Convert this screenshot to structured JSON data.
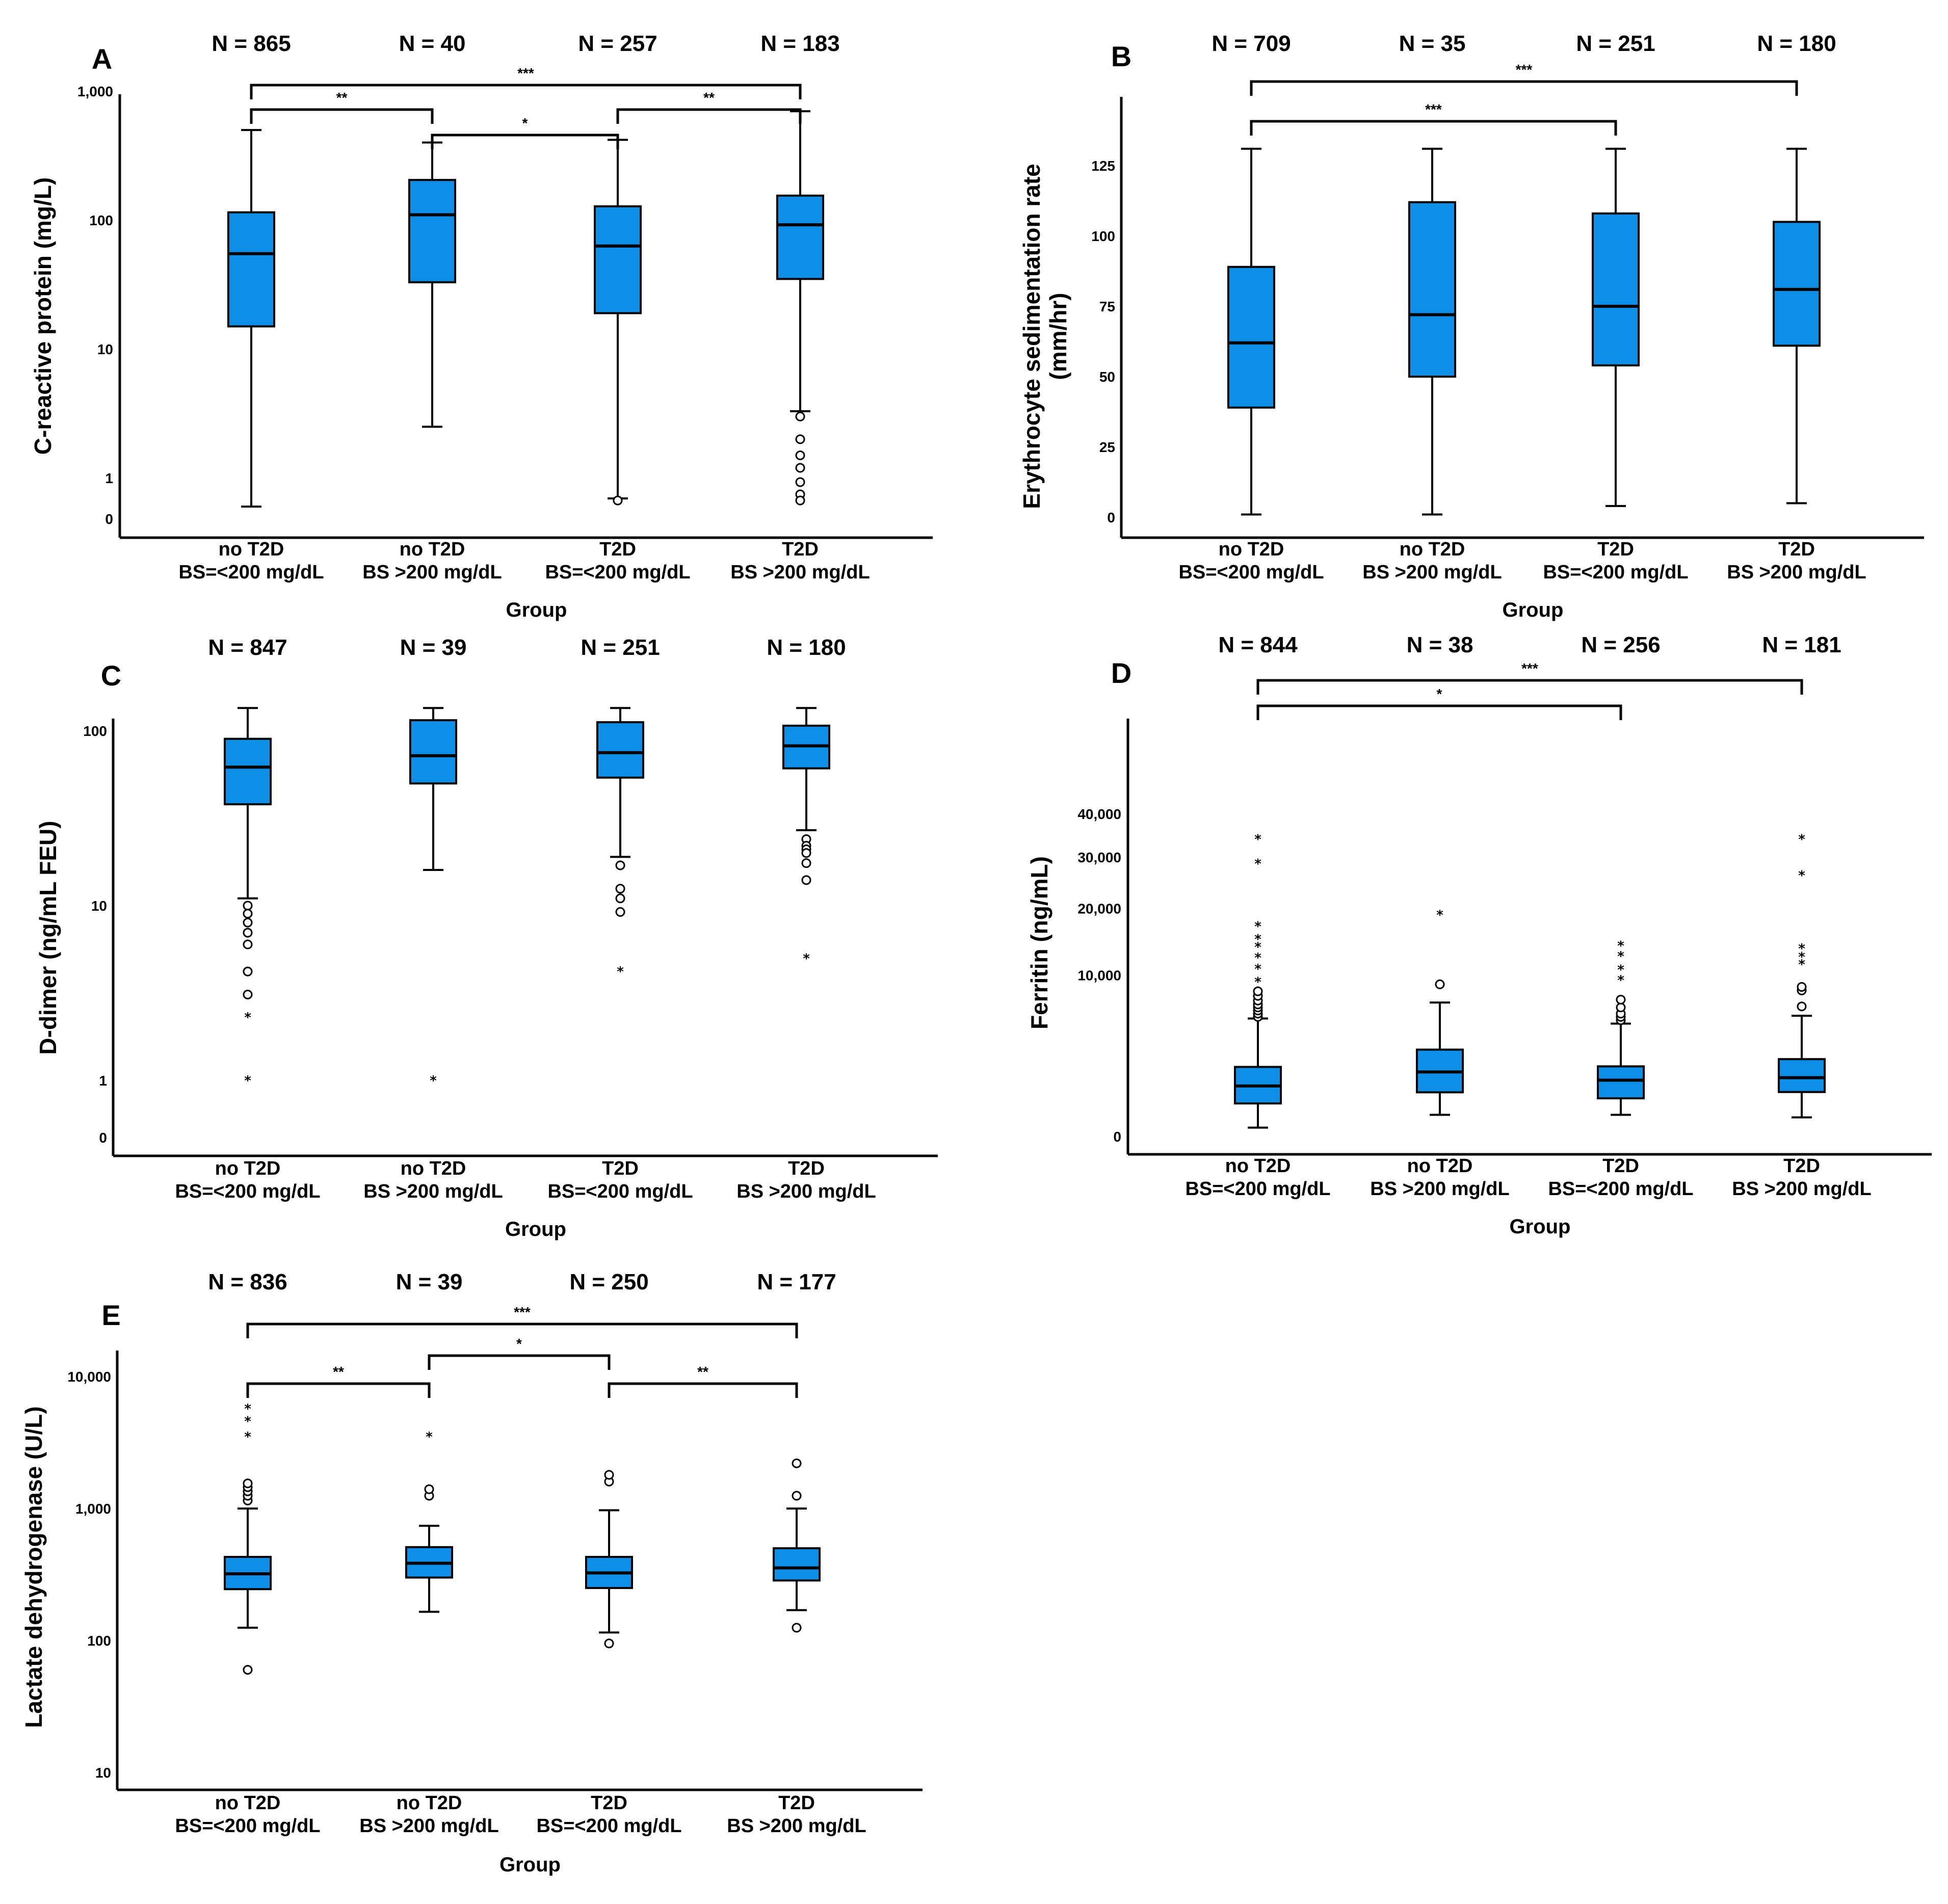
{
  "figure": {
    "categories": [
      [
        "no T2D",
        "BS=<200 mg/dL"
      ],
      [
        "no T2D",
        "BS >200 mg/dL"
      ],
      [
        "T2D",
        "BS=<200 mg/dL"
      ],
      [
        "T2D",
        "BS >200 mg/dL"
      ]
    ],
    "xlabel": "Group",
    "box_color": "#0d8fe8"
  },
  "chart_data": [
    {
      "panel": "A",
      "type": "boxplot",
      "scale": "log",
      "ylabel": "C-reactive protein (mg/L)",
      "n_labels": [
        "N = 865",
        "N = 40",
        "N = 257",
        "N = 183"
      ],
      "ticks": [
        {
          "v": 0,
          "label": "0"
        },
        {
          "v": 1,
          "label": "1"
        },
        {
          "v": 10,
          "label": "10"
        },
        {
          "v": 100,
          "label": "100"
        },
        {
          "v": 1000,
          "label": "1,000"
        }
      ],
      "boxes": [
        {
          "min": 0.3,
          "q1": 15,
          "median": 55,
          "q3": 115,
          "max": 500,
          "outliers": [],
          "extremes": []
        },
        {
          "min": 2.5,
          "q1": 33,
          "median": 110,
          "q3": 205,
          "max": 400,
          "outliers": [],
          "extremes": []
        },
        {
          "min": 0.5,
          "q1": 19,
          "median": 63,
          "q3": 128,
          "max": 420,
          "outliers": [
            0.45
          ],
          "extremes": []
        },
        {
          "min": 3.3,
          "q1": 35,
          "median": 92,
          "q3": 155,
          "max": 700,
          "outliers": [
            3.0,
            2.0,
            1.5,
            1.2,
            0.9,
            0.6,
            0.45
          ],
          "extremes": []
        }
      ],
      "brackets": [
        {
          "from": 0,
          "to": 3,
          "level": 1,
          "label": "***"
        },
        {
          "from": 0,
          "to": 1,
          "level": 2,
          "label": "**"
        },
        {
          "from": 2,
          "to": 3,
          "level": 2,
          "label": "**"
        },
        {
          "from": 1,
          "to": 2,
          "level": 3,
          "label": "*"
        }
      ]
    },
    {
      "panel": "B",
      "type": "boxplot",
      "scale": "linear",
      "ylabel": [
        "Erythrocyte sedimentation rate",
        "(mm/hr)"
      ],
      "n_labels": [
        "N = 709",
        "N = 35",
        "N = 251",
        "N = 180"
      ],
      "ticks": [
        {
          "v": 0,
          "label": "0"
        },
        {
          "v": 25,
          "label": "25"
        },
        {
          "v": 50,
          "label": "50"
        },
        {
          "v": 75,
          "label": "75"
        },
        {
          "v": 100,
          "label": "100"
        },
        {
          "v": 125,
          "label": "125"
        }
      ],
      "boxes": [
        {
          "min": 1,
          "q1": 39,
          "median": 62,
          "q3": 89,
          "max": 131,
          "outliers": [],
          "extremes": []
        },
        {
          "min": 1,
          "q1": 50,
          "median": 72,
          "q3": 112,
          "max": 131,
          "outliers": [],
          "extremes": []
        },
        {
          "min": 4,
          "q1": 54,
          "median": 75,
          "q3": 108,
          "max": 131,
          "outliers": [],
          "extremes": []
        },
        {
          "min": 5,
          "q1": 61,
          "median": 81,
          "q3": 105,
          "max": 131,
          "outliers": [],
          "extremes": []
        }
      ],
      "brackets": [
        {
          "from": 0,
          "to": 3,
          "level": 1,
          "label": "***"
        },
        {
          "from": 0,
          "to": 2,
          "level": 2,
          "label": "***"
        }
      ]
    },
    {
      "panel": "C",
      "type": "boxplot",
      "scale": "log",
      "ylabel": "D-dimer (ng/mL FEU)",
      "n_labels": [
        "N = 847",
        "N = 39",
        "N = 251",
        "N = 180"
      ],
      "ticks": [
        {
          "v": 0,
          "label": "0"
        },
        {
          "v": 1,
          "label": "1"
        },
        {
          "v": 10,
          "label": "10"
        },
        {
          "v": 100,
          "label": "100"
        }
      ],
      "boxes": [
        {
          "min": 11,
          "q1": 38,
          "median": 62,
          "q3": 90,
          "max": 135,
          "outliers": [
            10,
            9,
            8,
            7,
            6,
            4.2,
            3.1
          ],
          "extremes": [
            2.3,
            1
          ]
        },
        {
          "min": 16,
          "q1": 50,
          "median": 72,
          "q3": 115,
          "max": 135,
          "outliers": [],
          "extremes": [
            1
          ]
        },
        {
          "min": 19,
          "q1": 54,
          "median": 75,
          "q3": 112,
          "max": 135,
          "outliers": [
            17,
            12.5,
            11,
            9.2
          ],
          "extremes": [
            4.2
          ]
        },
        {
          "min": 27,
          "q1": 61,
          "median": 82,
          "q3": 107,
          "max": 135,
          "outliers": [
            24,
            22,
            21,
            20,
            17.5,
            14
          ],
          "extremes": [
            5
          ]
        }
      ],
      "brackets": []
    },
    {
      "panel": "D",
      "type": "boxplot",
      "scale": "sqrt",
      "ylabel": "Ferritin (ng/mL)",
      "n_labels": [
        "N = 844",
        "N = 38",
        "N = 256",
        "N = 181"
      ],
      "ticks": [
        {
          "v": 0,
          "label": "0"
        },
        {
          "v": 10000,
          "label": "10,000"
        },
        {
          "v": 20000,
          "label": "20,000"
        },
        {
          "v": 30000,
          "label": "30,000"
        },
        {
          "v": 40000,
          "label": "40,000"
        }
      ],
      "boxes": [
        {
          "min": 30,
          "q1": 420,
          "median": 980,
          "q3": 1860,
          "max": 5350,
          "outliers": [
            5500,
            5800,
            6100,
            6400,
            6700,
            7100,
            7600,
            8100
          ],
          "extremes": [
            9200,
            10800,
            12300,
            13800,
            15000,
            17000,
            28600,
            34000
          ]
        },
        {
          "min": 180,
          "q1": 750,
          "median": 1600,
          "q3": 2900,
          "max": 6900,
          "outliers": [
            8900
          ],
          "extremes": [
            18900
          ]
        },
        {
          "min": 180,
          "q1": 560,
          "median": 1220,
          "q3": 1890,
          "max": 4900,
          "outliers": [
            5200,
            5500,
            5800,
            6400,
            7200
          ],
          "extremes": [
            9400,
            10700,
            12500,
            14000
          ]
        },
        {
          "min": 140,
          "q1": 760,
          "median": 1330,
          "q3": 2300,
          "max": 5600,
          "outliers": [
            6500,
            8200,
            8600
          ],
          "extremes": [
            11400,
            12400,
            13600,
            26200,
            34000
          ]
        }
      ],
      "brackets": [
        {
          "from": 0,
          "to": 3,
          "level": 1,
          "label": "***"
        },
        {
          "from": 0,
          "to": 2,
          "level": 2,
          "label": "*"
        }
      ]
    },
    {
      "panel": "E",
      "type": "boxplot",
      "scale": "log",
      "ylabel": "Lactate dehydrogenase (U/L)",
      "n_labels": [
        "N = 836",
        "N = 39",
        "N = 250",
        "N = 177"
      ],
      "ticks": [
        {
          "v": 10,
          "label": "10"
        },
        {
          "v": 100,
          "label": "100"
        },
        {
          "v": 1000,
          "label": "1,000"
        },
        {
          "v": 10000,
          "label": "10,000"
        }
      ],
      "boxes": [
        {
          "min": 125,
          "q1": 245,
          "median": 320,
          "q3": 430,
          "max": 1000,
          "outliers": [
            1150,
            1250,
            1350,
            1450,
            1550,
            60
          ],
          "extremes": [
            3500,
            4600,
            5700
          ]
        },
        {
          "min": 165,
          "q1": 300,
          "median": 385,
          "q3": 510,
          "max": 740,
          "outliers": [
            1250,
            1400
          ],
          "extremes": [
            3500
          ]
        },
        {
          "min": 115,
          "q1": 250,
          "median": 325,
          "q3": 430,
          "max": 970,
          "outliers": [
            1600,
            1800,
            95
          ],
          "extremes": []
        },
        {
          "min": 170,
          "q1": 285,
          "median": 355,
          "q3": 500,
          "max": 1000,
          "outliers": [
            1250,
            2200,
            125
          ],
          "extremes": []
        }
      ],
      "brackets": [
        {
          "from": 0,
          "to": 3,
          "level": 1,
          "label": "***"
        },
        {
          "from": 1,
          "to": 2,
          "level": 2,
          "label": "*"
        },
        {
          "from": 0,
          "to": 1,
          "level": 3,
          "label": "**"
        },
        {
          "from": 2,
          "to": 3,
          "level": 3,
          "label": "**"
        }
      ]
    }
  ]
}
